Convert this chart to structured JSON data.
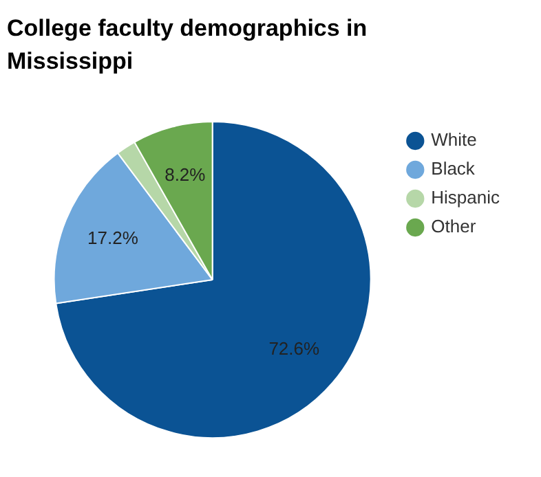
{
  "chart_data": {
    "type": "pie",
    "title": "College faculty demographics in Mississippi",
    "categories": [
      "White",
      "Black",
      "Hispanic",
      "Other"
    ],
    "values": [
      72.6,
      17.2,
      2.0,
      8.2
    ],
    "colors": [
      "#0b5394",
      "#6fa8dc",
      "#b6d7a8",
      "#6aa84f"
    ],
    "value_labels": [
      "72.6%",
      "17.2%",
      null,
      "8.2%"
    ],
    "legend": "top right"
  }
}
